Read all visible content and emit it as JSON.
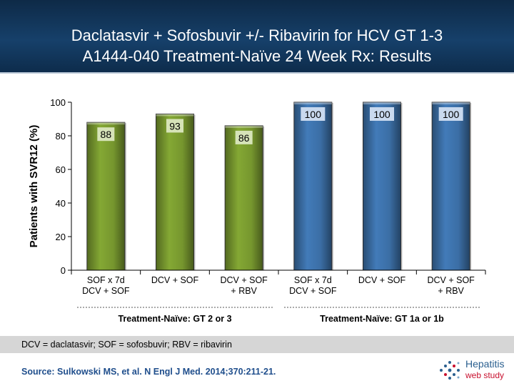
{
  "slide": {
    "title_line1": "Daclatasvir + Sofosbuvir +/- Ribavirin for HCV GT 1-3",
    "title_line2": "A1444-040 Treatment-Naïve 24 Week Rx: Results",
    "footnote": "DCV = daclatasvir; SOF = sofosbuvir; RBV = ribavirin",
    "source": "Source: Sulkowski MS, et al. N Engl J Med. 2014;370:211-21.",
    "logo": {
      "line1": "Hepatitis",
      "line2": "web study"
    }
  },
  "chart_data": {
    "type": "bar",
    "ylabel": "Patients with SVR12 (%)",
    "ylim": [
      0,
      100
    ],
    "yticks": [
      0,
      20,
      40,
      60,
      80,
      100
    ],
    "categories": [
      [
        "SOF x 7d",
        "DCV + SOF"
      ],
      [
        "DCV + SOF"
      ],
      [
        "DCV + SOF",
        "+ RBV"
      ],
      [
        "SOF x 7d",
        "DCV + SOF"
      ],
      [
        "DCV + SOF"
      ],
      [
        "DCV + SOF",
        "+ RBV"
      ]
    ],
    "values": [
      88,
      93,
      86,
      100,
      100,
      100
    ],
    "data_labels": [
      "88",
      "93",
      "86",
      "100",
      "100",
      "100"
    ],
    "groups": [
      {
        "label": "Treatment-Naïve: GT 2 or 3",
        "bar_indices": [
          0,
          1,
          2
        ],
        "color": "#76962e"
      },
      {
        "label": "Treatment-Naïve: GT 1a or 1b",
        "bar_indices": [
          3,
          4,
          5
        ],
        "color": "#3b6ea5"
      }
    ],
    "grid": false,
    "legend": "none"
  }
}
